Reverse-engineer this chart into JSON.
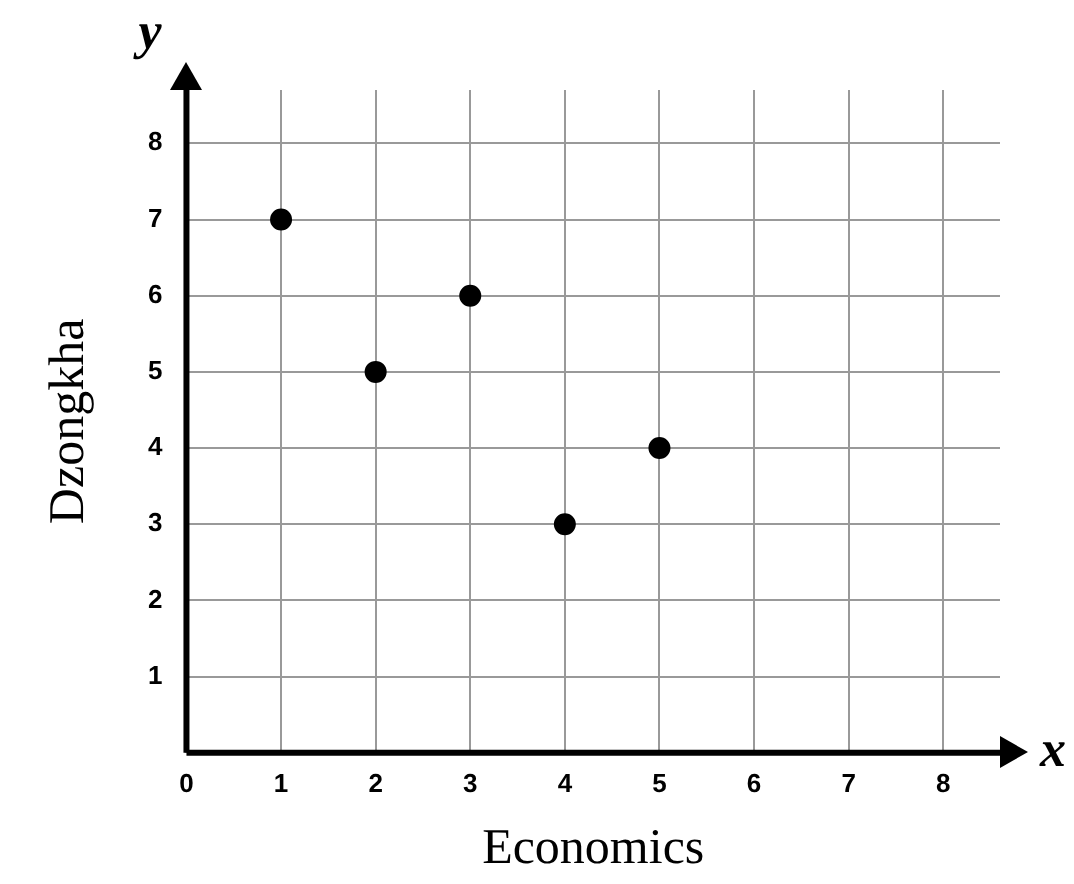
{
  "chart_data": {
    "type": "scatter",
    "xlabel": "Economics",
    "ylabel": "Dzongkha",
    "x": [
      1,
      2,
      3,
      4,
      5
    ],
    "values": [
      7,
      5,
      6,
      3,
      4
    ],
    "color": "#000000",
    "marker": "circle",
    "xlim": [
      0,
      8.6
    ],
    "ylim": [
      0,
      8.7
    ],
    "xticks": [
      0,
      1,
      2,
      3,
      4,
      5,
      6,
      7,
      8
    ],
    "yticks": [
      1,
      2,
      3,
      4,
      5,
      6,
      7,
      8
    ],
    "grid": true,
    "legend": false,
    "annotations": [
      "x",
      "y"
    ]
  }
}
